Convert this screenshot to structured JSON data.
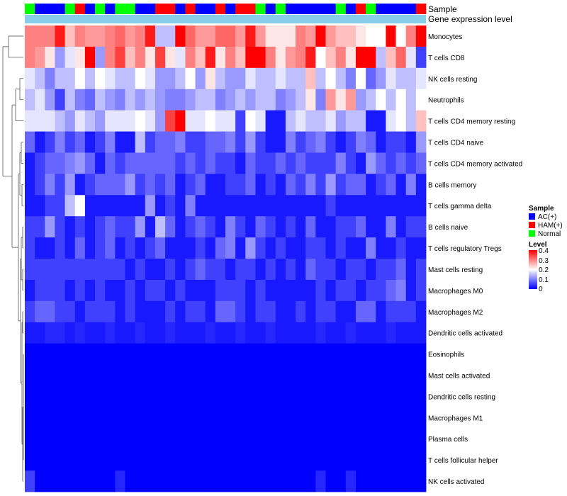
{
  "chart_data": {
    "type": "heatmap",
    "title": "",
    "annotation_tracks": [
      {
        "name": "Sample",
        "values": [
          "Normal",
          "AC(+)",
          "AC(+)",
          "AC(+)",
          "Normal",
          "HAM(+)",
          "AC(+)",
          "Normal",
          "AC(+)",
          "Normal",
          "Normal",
          "AC(+)",
          "AC(+)",
          "HAM(+)",
          "HAM(+)",
          "AC(+)",
          "HAM(+)",
          "AC(+)",
          "AC(+)",
          "HAM(+)",
          "AC(+)",
          "HAM(+)",
          "HAM(+)",
          "Normal",
          "AC(+)",
          "Normal",
          "AC(+)",
          "AC(+)",
          "AC(+)",
          "AC(+)",
          "AC(+)",
          "Normal",
          "AC(+)",
          "HAM(+)",
          "Normal",
          "AC(+)",
          "AC(+)",
          "AC(+)",
          "AC(+)",
          "HAM(+)"
        ]
      },
      {
        "name": "Gene expression level",
        "values": [
          "all"
        ]
      }
    ],
    "rows": [
      "Monocytes",
      "T cells CD8",
      "NK cells resting",
      "Neutrophils",
      "T cells CD4 memory resting",
      "T cells CD4 naive",
      "T cells CD4 memory activated",
      "B cells memory",
      "T cells gamma delta",
      "B cells naive",
      "T cells regulatory  Tregs",
      "Mast cells resting",
      "Macrophages M0",
      "Macrophages M2",
      "Dendritic cells activated",
      "Eosinophils",
      "Mast cells activated",
      "Dendritic cells resting",
      "Macrophages M1",
      "Plasma cells",
      "T cells follicular helper",
      "NK cells activated"
    ],
    "columns": 40,
    "values": [
      [
        0.3,
        0.3,
        0.3,
        0.38,
        0.25,
        0.3,
        0.28,
        0.28,
        0.3,
        0.32,
        0.28,
        0.3,
        0.38,
        0.15,
        0.15,
        0.42,
        0.32,
        0.28,
        0.28,
        0.32,
        0.32,
        0.28,
        0.38,
        0.28,
        0.22,
        0.22,
        0.22,
        0.3,
        0.28,
        0.4,
        0.28,
        0.25,
        0.25,
        0.22,
        0.2,
        0.2,
        0.4,
        0.2,
        0.3,
        0.4
      ],
      [
        0.3,
        0.28,
        0.22,
        0.12,
        0.18,
        0.22,
        0.42,
        0.12,
        0.3,
        0.35,
        0.25,
        0.3,
        0.22,
        0.35,
        0.22,
        0.18,
        0.3,
        0.25,
        0.38,
        0.22,
        0.3,
        0.25,
        0.42,
        0.4,
        0.3,
        0.22,
        0.28,
        0.3,
        0.38,
        0.2,
        0.25,
        0.3,
        0.22,
        0.42,
        0.42,
        0.15,
        0.25,
        0.32,
        0.18,
        0.05
      ],
      [
        0.18,
        0.15,
        0.1,
        0.15,
        0.15,
        0.2,
        0.15,
        0.2,
        0.18,
        0.15,
        0.15,
        0.2,
        0.18,
        0.12,
        0.12,
        0.15,
        0.2,
        0.12,
        0.22,
        0.15,
        0.12,
        0.12,
        0.18,
        0.15,
        0.15,
        0.18,
        0.15,
        0.15,
        0.25,
        0.15,
        0.2,
        0.15,
        0.1,
        0.2,
        0.08,
        0.12,
        0.18,
        0.15,
        0.15,
        0.18
      ],
      [
        0.15,
        0.18,
        0.12,
        0.05,
        0.15,
        0.1,
        0.08,
        0.15,
        0.12,
        0.1,
        0.15,
        0.12,
        0.15,
        0.12,
        0.1,
        0.1,
        0.12,
        0.15,
        0.15,
        0.1,
        0.12,
        0.15,
        0.12,
        0.15,
        0.15,
        0.1,
        0.12,
        0.15,
        0.22,
        0.1,
        0.28,
        0.22,
        0.28,
        0.12,
        0.15,
        0.2,
        0.15,
        0.2,
        0.15,
        0.2
      ],
      [
        0.18,
        0.18,
        0.18,
        0.15,
        0.12,
        0.18,
        0.15,
        0.12,
        0.18,
        0.18,
        0.18,
        0.2,
        0.18,
        0.12,
        0.35,
        0.4,
        0.18,
        0.18,
        0.2,
        0.18,
        0.18,
        0.05,
        0.2,
        0.18,
        0.02,
        0.02,
        0.15,
        0.18,
        0.15,
        0.15,
        0.18,
        0.12,
        0.15,
        0.15,
        0.02,
        0.02,
        0.18,
        0.2,
        0.15,
        0.25
      ],
      [
        0.08,
        0.02,
        0.05,
        0.1,
        0.05,
        0.08,
        0.02,
        0.05,
        0.1,
        0.02,
        0.02,
        0.15,
        0.05,
        0.08,
        0.08,
        0.1,
        0.05,
        0.05,
        0.08,
        0.08,
        0.1,
        0.05,
        0.12,
        0.05,
        0.02,
        0.02,
        0.1,
        0.05,
        0.08,
        0.1,
        0.05,
        0.02,
        0.05,
        0.1,
        0.08,
        0.02,
        0.05,
        0.05,
        0.02,
        0.12
      ],
      [
        0.02,
        0.05,
        0.08,
        0.08,
        0.1,
        0.12,
        0.08,
        0.02,
        0.08,
        0.05,
        0.08,
        0.08,
        0.08,
        0.08,
        0.08,
        0.05,
        0.08,
        0.05,
        0.08,
        0.05,
        0.05,
        0.02,
        0.08,
        0.05,
        0.05,
        0.08,
        0.05,
        0.08,
        0.05,
        0.05,
        0.05,
        0.1,
        0.05,
        0.02,
        0.12,
        0.08,
        0.05,
        0.08,
        0.05,
        0.08
      ],
      [
        0.02,
        0.05,
        0.1,
        0.05,
        0.12,
        0.02,
        0.05,
        0.08,
        0.08,
        0.08,
        0.12,
        0.05,
        0.08,
        0.05,
        0.08,
        0.02,
        0.05,
        0.08,
        0.02,
        0.02,
        0.05,
        0.05,
        0.08,
        0.02,
        0.05,
        0.02,
        0.08,
        0.05,
        0.1,
        0.05,
        0.12,
        0.05,
        0.08,
        0.08,
        0.02,
        0.05,
        0.08,
        0.02,
        0.1,
        0.02
      ],
      [
        0.02,
        0.02,
        0.05,
        0.05,
        0.15,
        0.2,
        0.02,
        0.02,
        0.02,
        0.02,
        0.02,
        0.02,
        0.12,
        0.02,
        0.05,
        0.02,
        0.1,
        0.02,
        0.02,
        0.02,
        0.02,
        0.02,
        0.02,
        0.02,
        0.02,
        0.02,
        0.02,
        0.02,
        0.02,
        0.02,
        0.05,
        0.02,
        0.02,
        0.02,
        0.02,
        0.02,
        0.02,
        0.02,
        0.02,
        0.02
      ],
      [
        0.05,
        0.05,
        0.12,
        0.05,
        0.02,
        0.05,
        0.02,
        0.05,
        0.08,
        0.05,
        0.05,
        0.12,
        0.02,
        0.15,
        0.08,
        0.02,
        0.05,
        0.08,
        0.05,
        0.02,
        0.1,
        0.05,
        0.02,
        0.08,
        0.05,
        0.02,
        0.05,
        0.02,
        0.08,
        0.02,
        0.02,
        0.05,
        0.05,
        0.08,
        0.02,
        0.02,
        0.1,
        0.02,
        0.05,
        0.05
      ],
      [
        0.05,
        0.02,
        0.02,
        0.05,
        0.02,
        0.08,
        0.02,
        0.05,
        0.08,
        0.02,
        0.05,
        0.02,
        0.05,
        0.08,
        0.02,
        0.02,
        0.02,
        0.05,
        0.02,
        0.08,
        0.1,
        0.02,
        0.12,
        0.05,
        0.02,
        0.05,
        0.02,
        0.02,
        0.05,
        0.05,
        0.02,
        0.05,
        0.02,
        0.02,
        0.1,
        0.02,
        0.02,
        0.05,
        0.02,
        0.02
      ],
      [
        0.05,
        0.05,
        0.05,
        0.05,
        0.05,
        0.05,
        0.05,
        0.05,
        0.05,
        0.05,
        0.02,
        0.05,
        0.02,
        0.02,
        0.05,
        0.02,
        0.05,
        0.08,
        0.05,
        0.05,
        0.02,
        0.05,
        0.05,
        0.02,
        0.05,
        0.02,
        0.05,
        0.02,
        0.08,
        0.05,
        0.05,
        0.02,
        0.05,
        0.05,
        0.02,
        0.05,
        0.05,
        0.08,
        0.02,
        0.05
      ],
      [
        0.02,
        0.05,
        0.05,
        0.05,
        0.02,
        0.05,
        0.02,
        0.05,
        0.02,
        0.02,
        0.05,
        0.02,
        0.05,
        0.05,
        0.02,
        0.05,
        0.02,
        0.02,
        0.02,
        0.05,
        0.05,
        0.05,
        0.02,
        0.05,
        0.02,
        0.02,
        0.02,
        0.02,
        0.02,
        0.05,
        0.02,
        0.05,
        0.05,
        0.02,
        0.05,
        0.05,
        0.08,
        0.1,
        0.02,
        0.05
      ],
      [
        0.05,
        0.08,
        0.08,
        0.05,
        0.05,
        0.02,
        0.05,
        0.05,
        0.05,
        0.02,
        0.05,
        0.02,
        0.02,
        0.02,
        0.05,
        0.02,
        0.05,
        0.05,
        0.02,
        0.08,
        0.08,
        0.05,
        0.02,
        0.05,
        0.05,
        0.02,
        0.02,
        0.05,
        0.02,
        0.05,
        0.05,
        0.02,
        0.02,
        0.08,
        0.08,
        0.02,
        0.05,
        0.05,
        0.05,
        0.02
      ],
      [
        0.02,
        0.02,
        0.03,
        0.03,
        0.02,
        0.03,
        0.02,
        0.02,
        0.03,
        0.02,
        0.02,
        0.03,
        0.02,
        0.02,
        0.03,
        0.02,
        0.02,
        0.02,
        0.03,
        0.02,
        0.02,
        0.03,
        0.02,
        0.02,
        0.03,
        0.02,
        0.02,
        0.02,
        0.02,
        0.03,
        0.02,
        0.02,
        0.03,
        0.02,
        0.02,
        0.02,
        0.03,
        0.02,
        0.02,
        0.02
      ],
      [
        0,
        0,
        0,
        0,
        0,
        0,
        0,
        0,
        0,
        0,
        0,
        0,
        0,
        0,
        0,
        0,
        0,
        0,
        0,
        0,
        0,
        0,
        0,
        0,
        0,
        0,
        0,
        0,
        0,
        0,
        0,
        0,
        0,
        0,
        0,
        0,
        0,
        0,
        0,
        0
      ],
      [
        0,
        0,
        0,
        0,
        0,
        0,
        0,
        0,
        0,
        0,
        0,
        0,
        0,
        0,
        0,
        0,
        0,
        0,
        0,
        0,
        0,
        0,
        0,
        0,
        0,
        0,
        0,
        0,
        0,
        0,
        0,
        0,
        0,
        0,
        0,
        0,
        0,
        0,
        0,
        0
      ],
      [
        0,
        0,
        0,
        0,
        0,
        0,
        0,
        0,
        0,
        0,
        0,
        0,
        0,
        0,
        0,
        0,
        0,
        0,
        0,
        0,
        0,
        0,
        0,
        0,
        0,
        0,
        0,
        0,
        0,
        0,
        0,
        0,
        0,
        0,
        0,
        0,
        0,
        0,
        0,
        0
      ],
      [
        0,
        0,
        0,
        0,
        0,
        0,
        0,
        0,
        0,
        0,
        0,
        0,
        0,
        0,
        0,
        0,
        0,
        0,
        0,
        0,
        0,
        0,
        0,
        0,
        0,
        0,
        0,
        0,
        0,
        0,
        0,
        0,
        0,
        0,
        0,
        0,
        0,
        0,
        0,
        0
      ],
      [
        0,
        0,
        0,
        0,
        0,
        0,
        0,
        0,
        0,
        0,
        0,
        0,
        0,
        0,
        0,
        0,
        0,
        0,
        0,
        0,
        0,
        0,
        0,
        0,
        0,
        0,
        0,
        0,
        0,
        0,
        0,
        0,
        0,
        0,
        0,
        0,
        0,
        0,
        0,
        0
      ],
      [
        0,
        0,
        0,
        0,
        0,
        0,
        0,
        0,
        0,
        0,
        0,
        0,
        0,
        0,
        0,
        0,
        0,
        0,
        0,
        0,
        0,
        0,
        0,
        0,
        0,
        0,
        0,
        0,
        0,
        0,
        0,
        0,
        0,
        0,
        0,
        0,
        0,
        0,
        0,
        0
      ],
      [
        0.05,
        0,
        0,
        0,
        0,
        0,
        0,
        0,
        0,
        0.03,
        0,
        0,
        0,
        0,
        0,
        0,
        0,
        0,
        0,
        0,
        0,
        0,
        0,
        0,
        0,
        0,
        0,
        0,
        0,
        0.03,
        0,
        0,
        0.03,
        0,
        0,
        0,
        0,
        0,
        0,
        0
      ]
    ],
    "legend": {
      "sample": {
        "title": "Sample",
        "entries": [
          {
            "label": "AC(+)",
            "color": "#0000ff"
          },
          {
            "label": "HAM(+)",
            "color": "#ff0000"
          },
          {
            "label": "Normal",
            "color": "#00ff00"
          }
        ]
      },
      "level": {
        "title": "Level",
        "range": [
          0,
          0.4
        ],
        "ticks": [
          "0",
          "0.1",
          "0.2",
          "0.3",
          "0.4"
        ],
        "colors": [
          "#0000ff",
          "#ffffff",
          "#ff0000"
        ]
      }
    },
    "track_colors": {
      "AC(+)": "#0000ff",
      "HAM(+)": "#ff0000",
      "Normal": "#00ff00",
      "Gene expression level": "#87ceeb"
    }
  }
}
